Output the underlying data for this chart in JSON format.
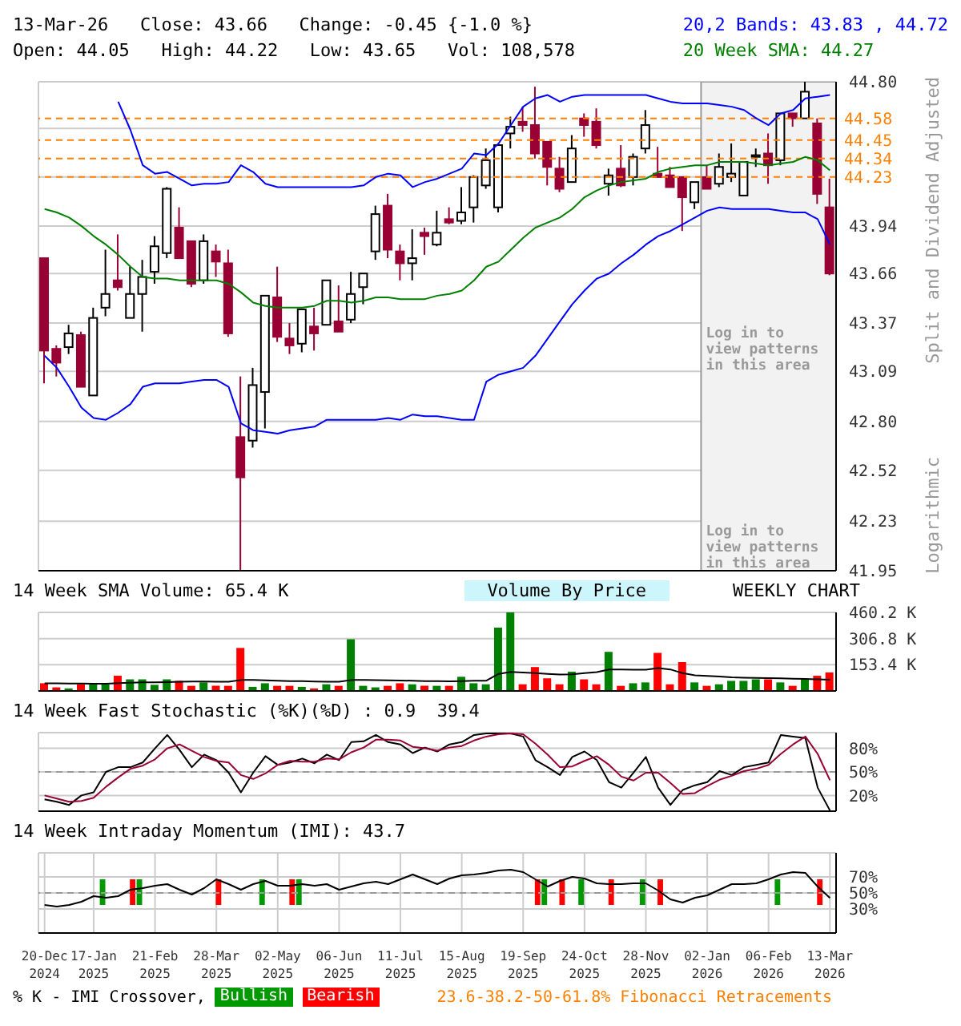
{
  "chart_data": [
    {
      "type": "candlestick",
      "title": "13-Mar-26   Close: 43.66   Change: -0.45 {-1.0 %}",
      "subtitle": "Open: 44.05   High: 44.22   Low: 43.65   Vol: 108,578",
      "ylabel": "Split and Dividend Adjusted",
      "annotations": [
        "Logarithmic",
        "Log in to view patterns in this area"
      ],
      "categories": [
        "20-Dec 2024",
        null,
        null,
        null,
        "17-Jan 2025",
        null,
        null,
        null,
        null,
        "21-Feb 2025",
        null,
        null,
        null,
        null,
        "28-Mar 2025",
        null,
        null,
        null,
        null,
        "02-May 2025",
        null,
        null,
        null,
        null,
        "06-Jun 2025",
        null,
        null,
        null,
        null,
        "11-Jul 2025",
        null,
        null,
        null,
        null,
        "15-Aug 2025",
        null,
        null,
        null,
        null,
        "19-Sep 2025",
        null,
        null,
        null,
        null,
        "24-Oct 2025",
        null,
        null,
        null,
        null,
        "28-Nov 2025",
        null,
        null,
        null,
        null,
        "02-Jan 2026",
        null,
        null,
        null,
        null,
        "06-Feb 2026",
        null,
        null,
        null,
        null,
        "13-Mar 2026"
      ],
      "ohlc": [
        [
          43.75,
          43.75,
          43.02,
          43.21
        ],
        [
          43.22,
          43.24,
          43.06,
          43.14
        ],
        [
          43.23,
          43.36,
          43.19,
          43.31
        ],
        [
          43.3,
          43.32,
          43.0,
          43.0
        ],
        [
          42.95,
          43.46,
          42.95,
          43.4
        ],
        [
          43.46,
          43.8,
          43.41,
          43.54
        ],
        [
          43.62,
          43.89,
          43.56,
          43.58
        ],
        [
          43.4,
          43.7,
          43.4,
          43.54
        ],
        [
          43.54,
          43.74,
          43.32,
          43.64
        ],
        [
          43.67,
          43.88,
          43.6,
          43.82
        ],
        [
          43.78,
          44.17,
          43.75,
          44.16
        ],
        [
          43.93,
          44.05,
          43.75,
          43.75
        ],
        [
          43.85,
          43.85,
          43.58,
          43.6
        ],
        [
          43.62,
          43.89,
          43.6,
          43.85
        ],
        [
          43.79,
          43.83,
          43.64,
          43.73
        ],
        [
          43.72,
          43.8,
          43.29,
          43.31
        ],
        [
          42.71,
          43.06,
          41.95,
          42.48
        ],
        [
          42.69,
          43.11,
          42.65,
          43.01
        ],
        [
          42.97,
          43.53,
          42.76,
          43.53
        ],
        [
          43.52,
          43.7,
          43.26,
          43.29
        ],
        [
          43.28,
          43.37,
          43.19,
          43.24
        ],
        [
          43.25,
          43.45,
          43.2,
          43.45
        ],
        [
          43.35,
          43.46,
          43.21,
          43.31
        ],
        [
          43.36,
          43.62,
          43.36,
          43.62
        ],
        [
          43.38,
          43.59,
          43.32,
          43.32
        ],
        [
          43.39,
          43.67,
          43.37,
          43.54
        ],
        [
          43.58,
          43.66,
          43.48,
          43.66
        ],
        [
          43.79,
          44.06,
          43.74,
          44.01
        ],
        [
          44.06,
          44.13,
          43.75,
          43.8
        ],
        [
          43.79,
          43.83,
          43.62,
          43.72
        ],
        [
          43.72,
          43.92,
          43.62,
          43.75
        ],
        [
          43.9,
          43.93,
          43.77,
          43.88
        ],
        [
          43.83,
          44.03,
          43.82,
          43.9
        ],
        [
          43.98,
          44.05,
          43.95,
          43.96
        ],
        [
          43.97,
          44.17,
          43.95,
          44.02
        ],
        [
          44.05,
          44.24,
          43.96,
          44.23
        ],
        [
          44.18,
          44.4,
          44.16,
          44.33
        ],
        [
          44.05,
          44.42,
          44.02,
          44.42
        ],
        [
          44.49,
          44.59,
          44.4,
          44.53
        ],
        [
          44.56,
          44.65,
          44.5,
          44.54
        ],
        [
          44.54,
          44.77,
          44.34,
          44.37
        ],
        [
          44.44,
          44.44,
          44.18,
          44.29
        ],
        [
          44.28,
          44.35,
          44.14,
          44.16
        ],
        [
          44.2,
          44.48,
          44.2,
          44.4
        ],
        [
          44.58,
          44.61,
          44.47,
          44.54
        ],
        [
          44.56,
          44.64,
          44.4,
          44.42
        ],
        [
          44.19,
          44.28,
          44.12,
          44.24
        ],
        [
          44.28,
          44.42,
          44.17,
          44.18
        ],
        [
          44.23,
          44.37,
          44.18,
          44.35
        ],
        [
          44.4,
          44.63,
          44.37,
          44.54
        ],
        [
          44.25,
          44.41,
          44.23,
          44.23
        ],
        [
          44.24,
          44.29,
          44.17,
          44.17
        ],
        [
          44.23,
          44.23,
          43.91,
          44.11
        ],
        [
          44.08,
          44.2,
          44.04,
          44.2
        ],
        [
          44.23,
          44.3,
          44.16,
          44.16
        ],
        [
          44.19,
          44.37,
          44.17,
          44.29
        ],
        [
          44.23,
          44.43,
          44.2,
          44.25
        ],
        [
          44.12,
          44.32,
          44.12,
          44.32
        ],
        [
          44.35,
          44.4,
          44.29,
          44.36
        ],
        [
          44.37,
          44.49,
          44.19,
          44.3
        ],
        [
          44.33,
          44.61,
          44.3,
          44.61
        ],
        [
          44.61,
          44.61,
          44.53,
          44.58
        ],
        [
          44.58,
          44.8,
          44.58,
          44.74
        ],
        [
          44.55,
          44.58,
          44.07,
          44.13
        ],
        [
          44.05,
          44.22,
          43.65,
          43.66
        ]
      ],
      "colors": [
        "#990033",
        "#990033",
        "#ffffff",
        "#990033",
        "#ffffff",
        "#ffffff",
        "#990033",
        "#ffffff",
        "#ffffff",
        "#ffffff",
        "#ffffff",
        "#990033",
        "#990033",
        "#ffffff",
        "#990033",
        "#990033",
        "#990033",
        "#ffffff",
        "#ffffff",
        "#990033",
        "#990033",
        "#ffffff",
        "#990033",
        "#ffffff",
        "#990033",
        "#ffffff",
        "#ffffff",
        "#ffffff",
        "#990033",
        "#990033",
        "#ffffff",
        "#990033",
        "#ffffff",
        "#990033",
        "#ffffff",
        "#ffffff",
        "#ffffff",
        "#ffffff",
        "#ffffff",
        "#990033",
        "#990033",
        "#990033",
        "#990033",
        "#ffffff",
        "#990033",
        "#990033",
        "#ffffff",
        "#990033",
        "#ffffff",
        "#ffffff",
        "#990033",
        "#990033",
        "#990033",
        "#ffffff",
        "#990033",
        "#ffffff",
        "#ffffff",
        "#ffffff",
        "#ffffff",
        "#990033",
        "#ffffff",
        "#990033",
        "#ffffff",
        "#990033",
        "#990033"
      ],
      "series": [
        {
          "type": "line",
          "name": "20,2 Bands: 43.83 , 44.72",
          "color": "#0000ff",
          "values": [
            null,
            null,
            null,
            null,
            null,
            null,
            44.68,
            44.51,
            44.3,
            44.25,
            44.26,
            44.22,
            44.18,
            44.19,
            44.19,
            44.2,
            44.3,
            44.26,
            44.19,
            44.17,
            44.17,
            44.17,
            44.17,
            44.17,
            44.17,
            44.17,
            44.18,
            44.23,
            44.25,
            44.24,
            44.17,
            44.2,
            44.22,
            44.25,
            44.28,
            44.37,
            44.36,
            44.43,
            44.54,
            44.65,
            44.7,
            44.72,
            44.68,
            44.71,
            44.72,
            44.72,
            44.72,
            44.72,
            44.72,
            44.72,
            44.7,
            44.68,
            44.67,
            44.67,
            44.67,
            44.66,
            44.65,
            44.63,
            44.58,
            44.54,
            44.61,
            44.63,
            44.7,
            44.71,
            44.72
          ]
        },
        {
          "type": "line",
          "color": "#0000ff",
          "values": [
            43.18,
            43.11,
            43.0,
            42.88,
            42.82,
            42.81,
            42.85,
            42.9,
            43.0,
            43.02,
            43.02,
            43.02,
            43.03,
            43.04,
            43.04,
            43.0,
            42.79,
            42.75,
            42.74,
            42.73,
            42.75,
            42.76,
            42.77,
            42.81,
            42.81,
            42.81,
            42.81,
            42.81,
            42.82,
            42.81,
            42.84,
            42.83,
            42.83,
            42.82,
            42.81,
            42.81,
            43.03,
            43.07,
            43.09,
            43.11,
            43.18,
            43.28,
            43.38,
            43.48,
            43.56,
            43.63,
            43.66,
            43.72,
            43.77,
            43.83,
            43.88,
            43.91,
            43.95,
            43.99,
            44.03,
            44.05,
            44.04,
            44.04,
            44.04,
            44.04,
            44.03,
            44.02,
            44.02,
            43.98,
            43.83
          ]
        },
        {
          "type": "line",
          "name": "20 Week SMA: 44.27",
          "color": "#008000",
          "values": [
            44.04,
            44.02,
            43.99,
            43.94,
            43.88,
            43.83,
            43.77,
            43.7,
            43.64,
            43.63,
            43.63,
            43.62,
            43.62,
            43.62,
            43.62,
            43.6,
            43.55,
            43.49,
            43.47,
            43.46,
            43.46,
            43.46,
            43.47,
            43.5,
            43.5,
            43.49,
            43.5,
            43.52,
            43.52,
            43.51,
            43.51,
            43.51,
            43.53,
            43.54,
            43.56,
            43.62,
            43.7,
            43.73,
            43.8,
            43.87,
            43.93,
            43.96,
            43.99,
            44.04,
            44.11,
            44.15,
            44.18,
            44.2,
            44.21,
            44.22,
            44.26,
            44.28,
            44.29,
            44.3,
            44.3,
            44.32,
            44.32,
            44.32,
            44.31,
            44.3,
            44.31,
            44.32,
            44.35,
            44.33,
            44.27
          ]
        }
      ],
      "log": "y",
      "ylim": [
        41.95,
        44.8
      ],
      "yticks": [
        {
          "value": 41.95,
          "label": "41.95"
        },
        {
          "value": 42.23,
          "label": "42.23"
        },
        {
          "value": 42.52,
          "label": "42.52"
        },
        {
          "value": 42.8,
          "label": "42.80"
        },
        {
          "value": 43.09,
          "label": "43.09"
        },
        {
          "value": 43.37,
          "label": "43.37"
        },
        {
          "value": 43.66,
          "label": "43.66"
        },
        {
          "value": 43.94,
          "label": "43.94"
        },
        {
          "value": 44.23,
          "label": null
        },
        {
          "value": 44.52,
          "label": null
        },
        {
          "value": 44.8,
          "label": "44.80"
        }
      ],
      "ref_lines": [
        {
          "axis": "y",
          "value": 44.58,
          "label": "44.58",
          "color": "#ff8000",
          "line_style": "dashed"
        },
        {
          "axis": "y",
          "value": 44.45,
          "label": "44.45",
          "color": "#ff8000",
          "line_style": "dashed"
        },
        {
          "axis": "y",
          "value": 44.34,
          "label": "44.34",
          "color": "#ff8000",
          "line_style": "dashed"
        },
        {
          "axis": "y",
          "value": 44.23,
          "label": "44.23",
          "color": "#ff8000",
          "line_style": "dashed"
        }
      ],
      "bands": [
        {
          "axis": "x",
          "from": "02-Jan 2026",
          "to": "13-Mar 2026",
          "label": "Log in to view patterns in this area",
          "color": "#f2f2f2"
        }
      ],
      "grid": true,
      "legend": "top right",
      "tick_labels": "y"
    },
    {
      "type": "bar",
      "title": "14 Week SMA Volume: 65.4 K",
      "annotations": [
        "Volume By Price",
        "WEEKLY CHART"
      ],
      "categories": [
        "20-Dec 2024",
        null,
        null,
        null,
        "17-Jan 2025",
        null,
        null,
        null,
        null,
        "21-Feb 2025",
        null,
        null,
        null,
        null,
        "28-Mar 2025",
        null,
        null,
        null,
        null,
        "02-May 2025",
        null,
        null,
        null,
        null,
        "06-Jun 2025",
        null,
        null,
        null,
        null,
        "11-Jul 2025",
        null,
        null,
        null,
        null,
        "15-Aug 2025",
        null,
        null,
        null,
        null,
        "19-Sep 2025",
        null,
        null,
        null,
        null,
        "24-Oct 2025",
        null,
        null,
        null,
        null,
        "28-Nov 2025",
        null,
        null,
        null,
        null,
        "02-Jan 2026",
        null,
        null,
        null,
        null,
        "06-Feb 2026",
        null,
        null,
        null,
        null,
        "13-Mar 2026"
      ],
      "series": [
        {
          "type": "bar",
          "colors": [
            "#ff0000",
            "#ff0000",
            "#008000",
            "#ff0000",
            "#008000",
            "#008000",
            "#ff0000",
            "#008000",
            "#008000",
            "#008000",
            "#008000",
            "#ff0000",
            "#ff0000",
            "#008000",
            "#ff0000",
            "#ff0000",
            "#ff0000",
            "#008000",
            "#008000",
            "#ff0000",
            "#ff0000",
            "#008000",
            "#ff0000",
            "#008000",
            "#ff0000",
            "#008000",
            "#008000",
            "#008000",
            "#ff0000",
            "#ff0000",
            "#008000",
            "#ff0000",
            "#008000",
            "#ff0000",
            "#008000",
            "#008000",
            "#008000",
            "#008000",
            "#008000",
            "#ff0000",
            "#ff0000",
            "#ff0000",
            "#ff0000",
            "#008000",
            "#ff0000",
            "#ff0000",
            "#008000",
            "#ff0000",
            "#008000",
            "#008000",
            "#ff0000",
            "#ff0000",
            "#ff0000",
            "#008000",
            "#ff0000",
            "#008000",
            "#008000",
            "#008000",
            "#008000",
            "#ff0000",
            "#008000",
            "#ff0000",
            "#008000",
            "#ff0000",
            "#ff0000"
          ],
          "values": [
            45,
            21,
            15,
            39,
            39,
            39,
            89,
            68,
            68,
            36,
            68,
            59,
            30,
            50,
            30,
            30,
            252,
            24,
            45,
            30,
            30,
            24,
            15,
            39,
            30,
            303,
            30,
            21,
            30,
            45,
            39,
            30,
            30,
            30,
            83,
            45,
            39,
            371,
            460,
            39,
            140,
            74,
            39,
            113,
            68,
            39,
            229,
            30,
            45,
            50,
            223,
            39,
            169,
            50,
            30,
            39,
            59,
            59,
            68,
            68,
            50,
            30,
            68,
            89,
            108.6
          ]
        },
        {
          "type": "line",
          "color": "#000000",
          "values": [
            45,
            45,
            44,
            43,
            42,
            42,
            46,
            48,
            50,
            50,
            52,
            54,
            55,
            55,
            54,
            54,
            64,
            64,
            62,
            60,
            58,
            57,
            55,
            54,
            54,
            64,
            64,
            63,
            62,
            61,
            60,
            58,
            57,
            56,
            58,
            60,
            60,
            100,
            112,
            108,
            104,
            100,
            96,
            98,
            104,
            110,
            126,
            126,
            124,
            124,
            134,
            126,
            104,
            92,
            88,
            84,
            80,
            78,
            76,
            75,
            74,
            72,
            70,
            68,
            65.4
          ]
        }
      ],
      "ylim": [
        0,
        460.2
      ],
      "yticks": [
        {
          "value": 153.4,
          "label": "153.4 K"
        },
        {
          "value": 306.8,
          "label": "306.8 K"
        },
        {
          "value": 460.2,
          "label": "460.2 K"
        }
      ],
      "grid": true,
      "tick_labels": "y"
    },
    {
      "type": "line",
      "title": "14 Week Fast Stochastic (%K)(%D) : 0.9  39.4",
      "categories": [
        "20-Dec 2024",
        null,
        null,
        null,
        "17-Jan 2025",
        null,
        null,
        null,
        null,
        "21-Feb 2025",
        null,
        null,
        null,
        null,
        "28-Mar 2025",
        null,
        null,
        null,
        null,
        "02-May 2025",
        null,
        null,
        null,
        null,
        "06-Jun 2025",
        null,
        null,
        null,
        null,
        "11-Jul 2025",
        null,
        null,
        null,
        null,
        "15-Aug 2025",
        null,
        null,
        null,
        null,
        "19-Sep 2025",
        null,
        null,
        null,
        null,
        "24-Oct 2025",
        null,
        null,
        null,
        null,
        "28-Nov 2025",
        null,
        null,
        null,
        null,
        "02-Jan 2026",
        null,
        null,
        null,
        null,
        "06-Feb 2026",
        null,
        null,
        null,
        null,
        "13-Mar 2026"
      ],
      "series": [
        {
          "type": "line",
          "color": "#000000",
          "values": [
            15,
            12,
            8,
            20,
            24,
            50,
            56,
            56,
            62,
            80,
            97,
            78,
            56,
            72,
            65,
            49,
            24,
            49,
            70,
            59,
            62,
            67,
            61,
            72,
            65,
            88,
            89,
            97,
            88,
            85,
            74,
            81,
            76,
            85,
            88,
            97,
            99,
            99,
            99,
            95,
            65,
            56,
            46,
            69,
            76,
            65,
            37,
            30,
            49,
            69,
            30,
            8,
            27,
            33,
            37,
            51,
            46,
            56,
            59,
            62,
            97,
            95,
            93,
            30,
            0.9
          ]
        },
        {
          "type": "line",
          "color": "#990033",
          "values": [
            20,
            16,
            12,
            13,
            17,
            31,
            43,
            54,
            58,
            66,
            80,
            85,
            77,
            69,
            64,
            62,
            46,
            41,
            48,
            59,
            64,
            63,
            63,
            67,
            66,
            75,
            81,
            91,
            91,
            90,
            82,
            80,
            77,
            81,
            83,
            90,
            95,
            98,
            99,
            98,
            86,
            72,
            56,
            57,
            64,
            70,
            59,
            44,
            39,
            49,
            49,
            36,
            22,
            23,
            32,
            40,
            45,
            51,
            54,
            59,
            73,
            85,
            95,
            73,
            39.4
          ]
        }
      ],
      "ylim": [
        0,
        100
      ],
      "yticks": [
        {
          "value": 20,
          "label": "20%"
        },
        {
          "value": 50,
          "label": "50%"
        },
        {
          "value": 80,
          "label": "80%"
        }
      ],
      "ref_lines": [
        {
          "axis": "y",
          "value": 50,
          "color": "#999999",
          "line_style": "dashed"
        }
      ],
      "grid": true,
      "tick_labels": "y"
    },
    {
      "type": "line",
      "title": "14 Week Intraday Momentum (IMI): 43.7",
      "annotations": [
        "% K - IMI Crossover,",
        "23.6-38.2-50-61.8% Fibonacci Retracements"
      ],
      "categories": [
        "20-Dec 2024",
        null,
        null,
        null,
        "17-Jan 2025",
        null,
        null,
        null,
        null,
        "21-Feb 2025",
        null,
        null,
        null,
        null,
        "28-Mar 2025",
        null,
        null,
        null,
        null,
        "02-May 2025",
        null,
        null,
        null,
        null,
        "06-Jun 2025",
        null,
        null,
        null,
        null,
        "11-Jul 2025",
        null,
        null,
        null,
        null,
        "15-Aug 2025",
        null,
        null,
        null,
        null,
        "19-Sep 2025",
        null,
        null,
        null,
        null,
        "24-Oct 2025",
        null,
        null,
        null,
        null,
        "28-Nov 2025",
        null,
        null,
        null,
        null,
        "02-Jan 2026",
        null,
        null,
        null,
        null,
        "06-Feb 2026",
        null,
        null,
        null,
        null,
        "13-Mar 2026"
      ],
      "series": [
        {
          "type": "bar",
          "name": "Bullish",
          "color": "#009900",
          "base": [
            null,
            null,
            null,
            null,
            null,
            35,
            null,
            null,
            35,
            null,
            null,
            null,
            null,
            null,
            null,
            null,
            null,
            null,
            35,
            null,
            null,
            35,
            null,
            null,
            null,
            null,
            null,
            null,
            null,
            null,
            null,
            null,
            null,
            null,
            null,
            null,
            null,
            null,
            null,
            null,
            null,
            35,
            null,
            null,
            35,
            null,
            null,
            null,
            null,
            35,
            null,
            null,
            null,
            null,
            null,
            null,
            null,
            null,
            null,
            null,
            35,
            null,
            null,
            null,
            null
          ],
          "values": [
            null,
            null,
            null,
            null,
            null,
            32,
            null,
            null,
            32,
            null,
            null,
            null,
            null,
            null,
            null,
            null,
            null,
            null,
            32,
            null,
            null,
            32,
            null,
            null,
            null,
            null,
            null,
            null,
            null,
            null,
            null,
            null,
            null,
            null,
            null,
            null,
            null,
            null,
            null,
            null,
            null,
            32,
            null,
            null,
            32,
            null,
            null,
            null,
            null,
            32,
            null,
            null,
            null,
            null,
            null,
            null,
            null,
            null,
            null,
            null,
            32,
            null,
            null,
            null,
            null
          ]
        },
        {
          "type": "bar",
          "name": "Bearish",
          "color": "#ff0000",
          "base": [
            null,
            null,
            null,
            null,
            null,
            null,
            null,
            35,
            null,
            null,
            null,
            null,
            null,
            null,
            35,
            null,
            null,
            null,
            null,
            null,
            35,
            null,
            null,
            null,
            null,
            null,
            null,
            null,
            null,
            null,
            null,
            null,
            null,
            null,
            null,
            null,
            null,
            null,
            null,
            null,
            35,
            null,
            35,
            null,
            null,
            null,
            35,
            null,
            null,
            null,
            35,
            null,
            null,
            null,
            null,
            null,
            null,
            null,
            null,
            null,
            null,
            null,
            null,
            35,
            null
          ],
          "values": [
            null,
            null,
            null,
            null,
            null,
            null,
            null,
            32,
            null,
            null,
            null,
            null,
            null,
            null,
            32,
            null,
            null,
            null,
            null,
            null,
            32,
            null,
            null,
            null,
            null,
            null,
            null,
            null,
            null,
            null,
            null,
            null,
            null,
            null,
            null,
            null,
            null,
            null,
            null,
            null,
            32,
            null,
            32,
            null,
            null,
            null,
            32,
            null,
            null,
            null,
            32,
            null,
            null,
            null,
            null,
            null,
            null,
            null,
            null,
            null,
            null,
            null,
            null,
            32,
            null
          ]
        },
        {
          "type": "line",
          "color": "#000000",
          "values": [
            35,
            33,
            35,
            39,
            46,
            44,
            46,
            54,
            56,
            59,
            61,
            54,
            48,
            56,
            67,
            61,
            54,
            61,
            65,
            59,
            59,
            61,
            59,
            61,
            54,
            58,
            62,
            64,
            61,
            67,
            73,
            67,
            61,
            68,
            72,
            73,
            75,
            78,
            79,
            76,
            67,
            58,
            65,
            70,
            68,
            62,
            61,
            61,
            62,
            62,
            53,
            42,
            38,
            44,
            47,
            54,
            61,
            61,
            62,
            67,
            73,
            76,
            75,
            58,
            43.7
          ]
        }
      ],
      "ylim": [
        0,
        100
      ],
      "yticks": [
        {
          "value": 30,
          "label": "30%"
        },
        {
          "value": 50,
          "label": "50%"
        },
        {
          "value": 70,
          "label": "70%"
        }
      ],
      "ref_lines": [
        {
          "axis": "y",
          "value": 50,
          "color": "#999999",
          "line_style": "dashed"
        }
      ],
      "grid": true,
      "legend": "bottom"
    }
  ]
}
